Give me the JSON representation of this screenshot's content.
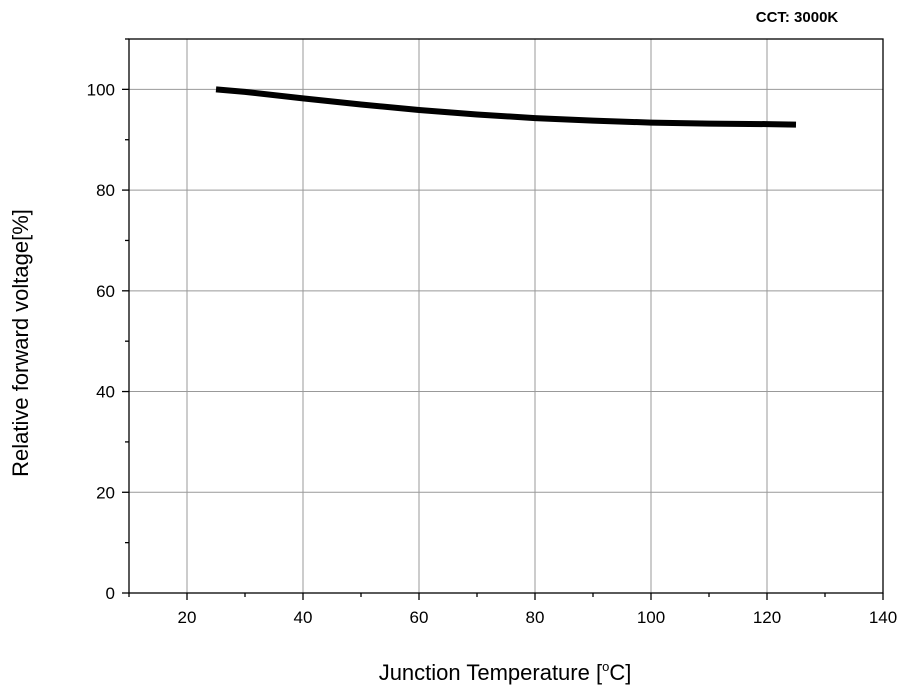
{
  "chart_data": {
    "type": "line",
    "annotation": "CCT: 3000K",
    "xlabel_main": "Junction Temperature [",
    "xlabel_sup": "o",
    "xlabel_unit": "C]",
    "ylabel": "Relative forward voltage[%]",
    "xlim": [
      10,
      140
    ],
    "ylim": [
      0,
      110
    ],
    "xticks": [
      20,
      40,
      60,
      80,
      100,
      120,
      140
    ],
    "yticks": [
      0,
      20,
      40,
      60,
      80,
      100
    ],
    "grid": true,
    "series": [
      {
        "x": [
          25,
          30,
          40,
          50,
          60,
          70,
          80,
          90,
          100,
          110,
          120,
          125
        ],
        "y": [
          100,
          99.5,
          98.2,
          97.0,
          95.9,
          95.0,
          94.3,
          93.8,
          93.4,
          93.2,
          93.1,
          93.0
        ]
      }
    ]
  }
}
